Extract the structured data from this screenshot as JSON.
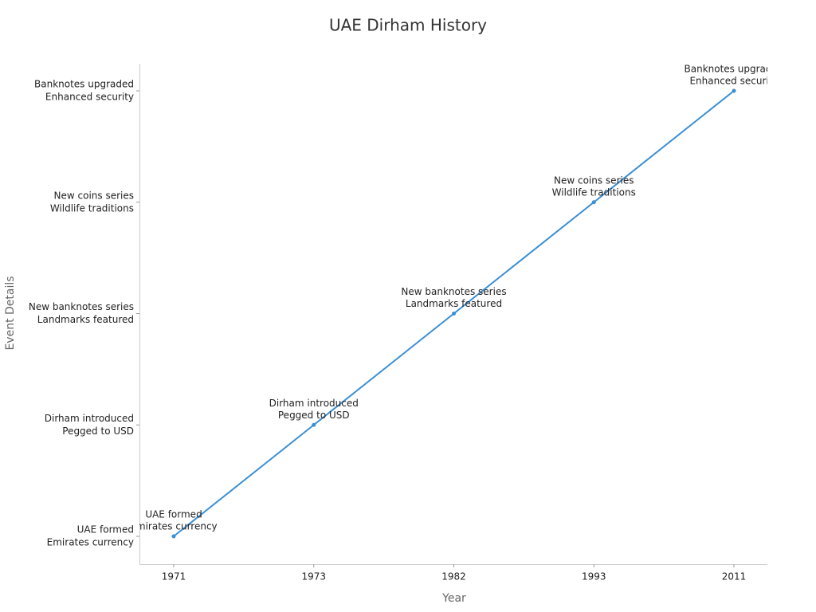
{
  "chart_data": {
    "type": "line",
    "title": "UAE Dirham History",
    "x_label": "Year",
    "y_label": "Event Details",
    "categories": [
      "1971",
      "1973",
      "1982",
      "1993",
      "2011"
    ],
    "y_categories": [
      [
        "UAE formed",
        "Emirates currency"
      ],
      [
        "Dirham introduced",
        "Pegged to USD"
      ],
      [
        "New banknotes series",
        "Landmarks featured"
      ],
      [
        "New coins series",
        "Wildlife traditions"
      ],
      [
        "Banknotes upgraded",
        "Enhanced security"
      ]
    ],
    "values": [
      [
        "UAE formed",
        "Emirates currency"
      ],
      [
        "Dirham introduced",
        "Pegged to USD"
      ],
      [
        "New banknotes series",
        "Landmarks featured"
      ],
      [
        "New coins series",
        "Wildlife traditions"
      ],
      [
        "Banknotes upgraded",
        "Enhanced security"
      ]
    ],
    "color": "#3a8fd4"
  }
}
